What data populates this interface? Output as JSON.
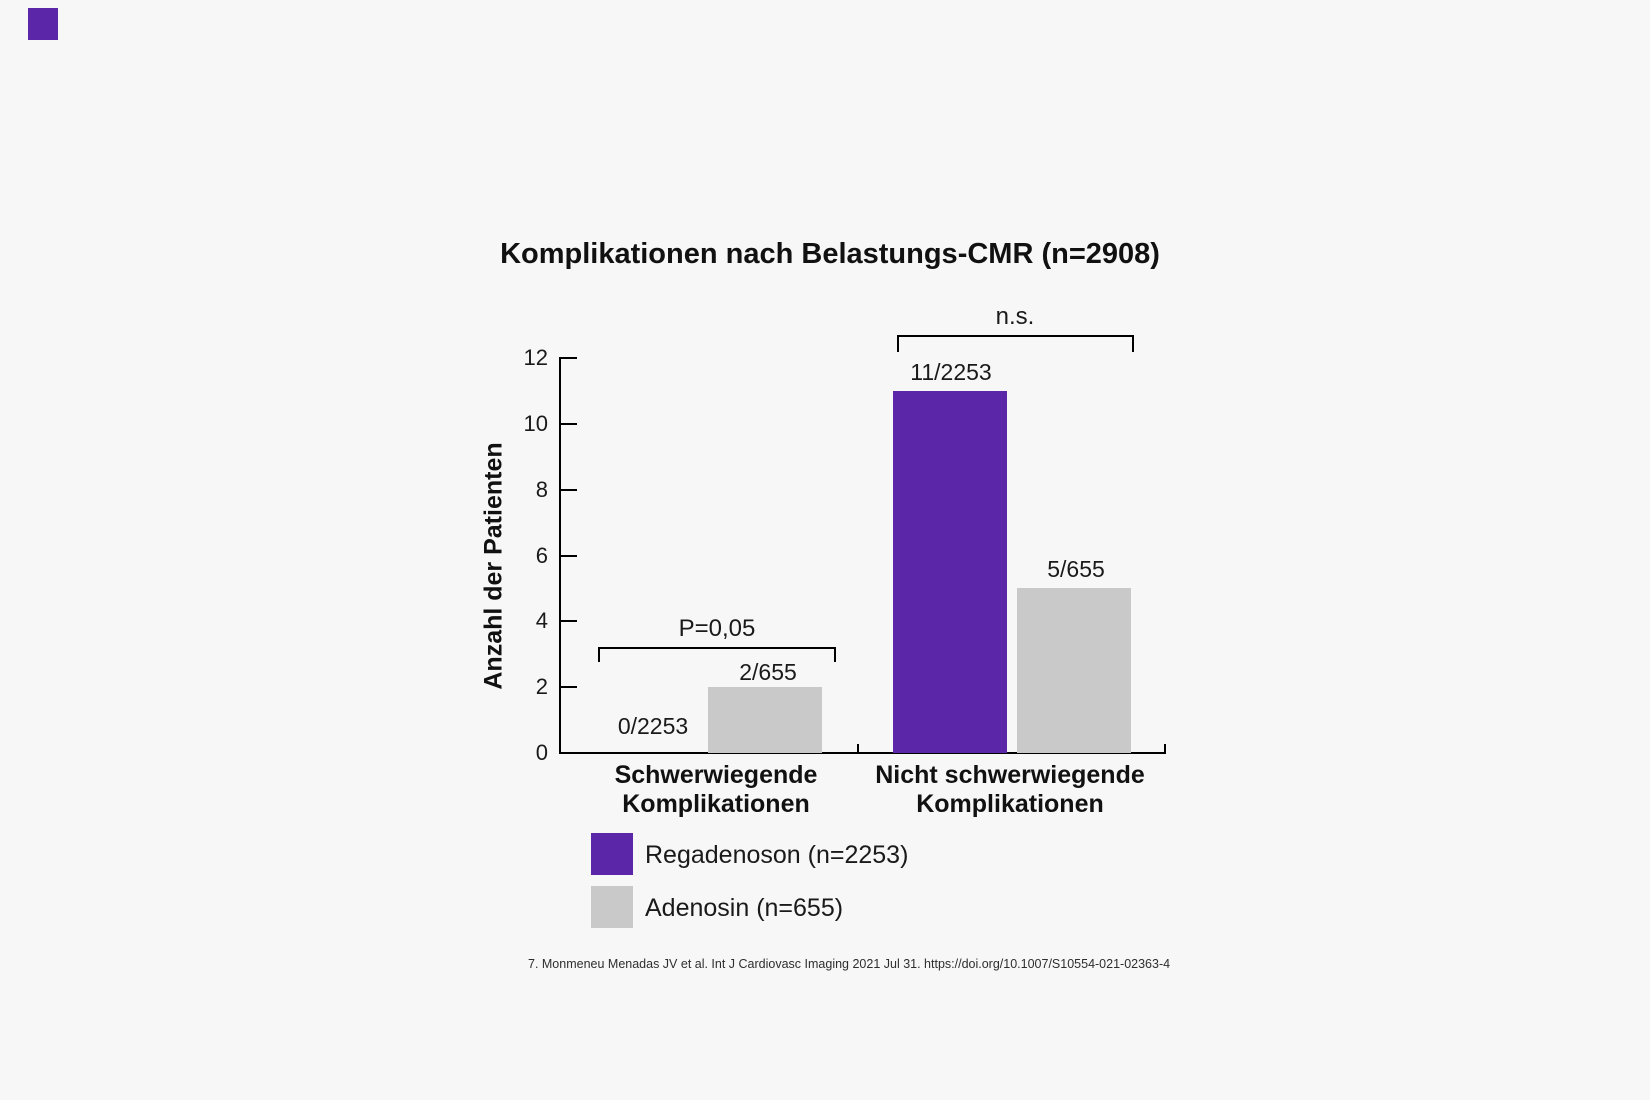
{
  "page": {
    "background_color": "#f7f7f7",
    "accent_color": "#5b26a8",
    "gray_color": "#c9c9c9"
  },
  "chart_data": {
    "type": "bar",
    "title": "Komplikationen nach Belastungs-CMR (n=2908)",
    "ylabel": "Anzahl der Patienten",
    "ylim": [
      0,
      12
    ],
    "ytick_labels": [
      "12",
      "10",
      "8",
      "6",
      "4",
      "2",
      "0"
    ],
    "grid": false,
    "legend_position": "bottom-left",
    "categories": [
      {
        "line1": "Schwerwiegende",
        "line2": "Komplikationen"
      },
      {
        "line1": "Nicht schwerwiegende",
        "line2": "Komplikationen"
      }
    ],
    "series": [
      {
        "name": "Regadenoson (n=2253)",
        "color": "#5b26a8",
        "values": [
          0,
          11
        ],
        "bar_labels": [
          "0/2253",
          "11/2253"
        ]
      },
      {
        "name": "Adenosin (n=655)",
        "color": "#c9c9c9",
        "values": [
          2,
          5
        ],
        "bar_labels": [
          "2/655",
          "5/655"
        ]
      }
    ],
    "significance": [
      {
        "group": "Schwerwiegende Komplikationen",
        "label": "P=0,05"
      },
      {
        "group": "Nicht schwerwiegende Komplikationen",
        "label": "n.s."
      }
    ]
  },
  "footer": {
    "citation": "7. Monmeneu Menadas JV et al. Int J Cardiovasc Imaging 2021 Jul 31. https://doi.org/10.1007/S10554-021-02363-4"
  }
}
